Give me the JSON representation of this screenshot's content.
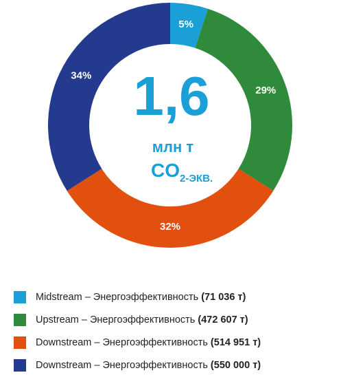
{
  "chart_data": {
    "type": "donut",
    "center_value": "1,6",
    "center_unit": "млн т",
    "center_unit2": "CO",
    "center_unit2_sub": "2-ЭКВ.",
    "center_color": "#1a9fd6",
    "series": [
      {
        "name": "Midstream – Энергоэффективность",
        "amount_label": "(71 036 т)",
        "color": "#1a9fd6"
      },
      {
        "name": "Upstream – Энергоэффективность",
        "amount_label": "(472 607 т)",
        "color": "#2f8a3b"
      },
      {
        "name": "Downstream – Энергоэффективность",
        "amount_label": "(514 951 т)",
        "color": "#e1500f"
      },
      {
        "name": "Downstream – Энергоэффективность",
        "amount_label": "(550 000 т)",
        "color": "#233a8e"
      }
    ],
    "values": [
      5,
      29,
      32,
      34
    ],
    "value_labels": [
      "5%",
      "29%",
      "32%",
      "34%"
    ]
  }
}
